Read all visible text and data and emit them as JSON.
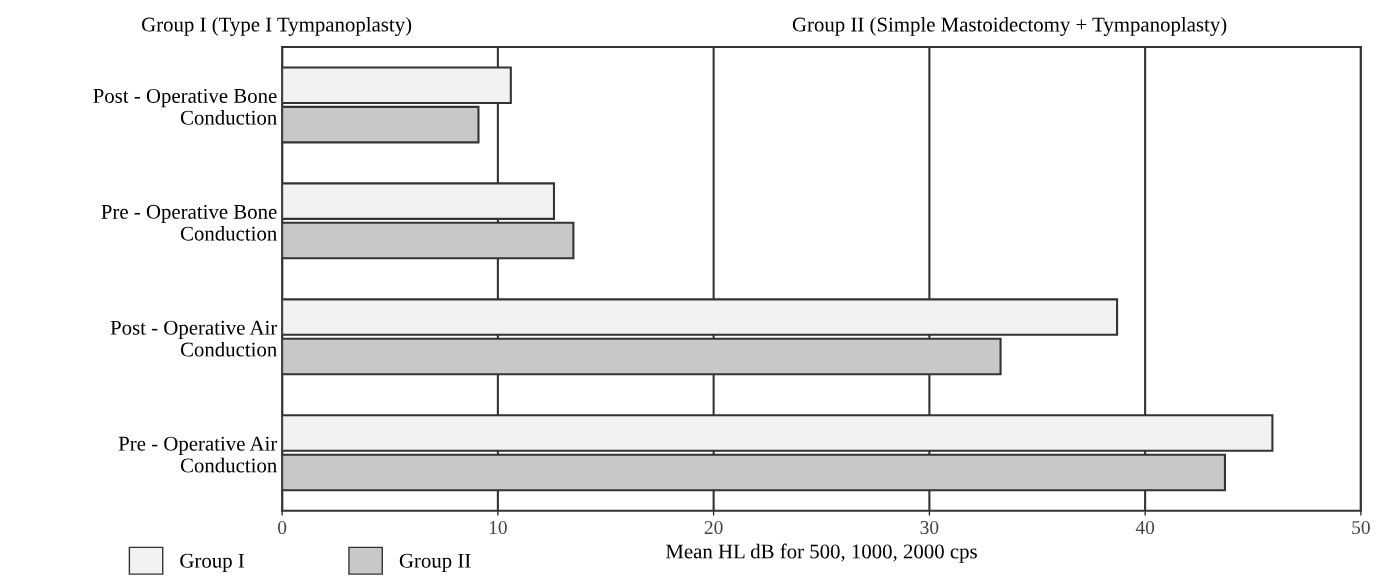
{
  "chart_data": {
    "type": "bar",
    "orientation": "horizontal",
    "categories": [
      "Post - Operative Bone\nConduction",
      "Pre - Operative Bone\nConduction",
      "Post - Operative Air\nConduction",
      "Pre - Operative Air\nConduction"
    ],
    "series": [
      {
        "name": "Group I",
        "color": "#f2f2f2",
        "values": [
          10.6,
          12.6,
          38.7,
          45.9
        ]
      },
      {
        "name": "Group II",
        "color": "#c8c8c8",
        "values": [
          9.1,
          13.5,
          33.3,
          43.7
        ]
      }
    ],
    "xlabel": "Mean HL dB for 500, 1000, 2000 cps",
    "xlim": [
      0,
      50
    ],
    "xticks": [
      0,
      10,
      20,
      30,
      40,
      50
    ],
    "grid": "x",
    "legend": "bottom left",
    "annotations": [
      "Group I (Type I Tympanoplasty)",
      "Group II (Simple Mastoidectomy + Tympanoplasty)"
    ]
  }
}
